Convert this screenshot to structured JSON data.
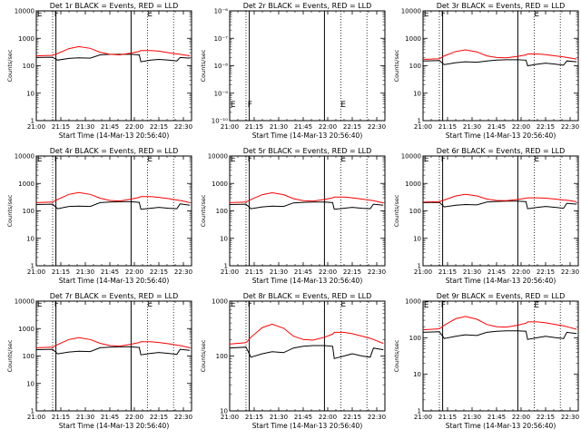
{
  "colors": {
    "events": "#000000",
    "lld": "#ff0000",
    "frame": "#000000",
    "background": "#ffffff"
  },
  "x_tick_labels": [
    "21:00",
    "21:15",
    "21:30",
    "21:45",
    "22:00",
    "22:15",
    "22:30"
  ],
  "chart_data": [
    {
      "type": "line",
      "title": "Det 1r BLACK = Events, RED = LLD",
      "xlabel": "Start Time (14-Mar-13 20:56:40)",
      "ylabel": "Counts/sec",
      "yscale": "log",
      "ylim": [
        1,
        10000
      ],
      "y_tick_labels": [
        "1",
        "10",
        "100",
        "1000",
        "10000"
      ],
      "x_minutes": [
        0,
        10,
        13,
        20,
        26,
        33,
        39,
        45,
        51,
        58,
        63,
        64,
        70,
        75,
        81,
        86,
        88,
        94
      ],
      "series": [
        {
          "key": "events",
          "values": [
            200,
            205,
            160,
            185,
            195,
            190,
            250,
            260,
            260,
            260,
            250,
            140,
            160,
            170,
            160,
            150,
            200,
            190
          ]
        },
        {
          "key": "lld",
          "values": [
            230,
            240,
            280,
            420,
            500,
            430,
            310,
            260,
            250,
            290,
            330,
            360,
            360,
            340,
            300,
            270,
            260,
            230
          ]
        }
      ],
      "markers": [
        {
          "label": "E",
          "minute": 0.5,
          "value": 8000
        },
        {
          "label": "F",
          "minute": 11,
          "value": 8000
        },
        {
          "label": "E",
          "minute": 68,
          "value": 8000
        }
      ],
      "solid_lines": [
        12,
        58
      ],
      "dotted_lines": [
        10,
        68,
        84
      ]
    },
    {
      "type": "line",
      "title": "Det 2r BLACK = Events, RED = LLD",
      "xlabel": "Start Time (14-Mar-13 20:56:40)",
      "ylabel": "Counts/sec",
      "yscale": "log",
      "ylim": [
        1e-10,
        1e-06
      ],
      "y_tick_labels": [
        "10⁻¹⁰",
        "10⁻⁹",
        "10⁻⁸",
        "10⁻⁷",
        "10⁻⁶"
      ],
      "x_minutes": [],
      "series": [],
      "markers": [
        {
          "label": "E",
          "minute": 0.5,
          "value": 4e-10
        },
        {
          "label": "F",
          "minute": 11,
          "value": 4e-10
        },
        {
          "label": "E",
          "minute": 68,
          "value": 4e-10
        }
      ],
      "solid_lines": [
        12,
        58
      ],
      "dotted_lines": [
        10,
        68,
        84
      ]
    },
    {
      "type": "line",
      "title": "Det 3r BLACK = Events, RED = LLD",
      "xlabel": "Start Time (14-Mar-13 20:56:40)",
      "ylabel": "Counts/sec",
      "yscale": "log",
      "ylim": [
        1,
        10000
      ],
      "y_tick_labels": [
        "1",
        "10",
        "100",
        "1000",
        "10000"
      ],
      "x_minutes": [
        0,
        10,
        13,
        20,
        26,
        33,
        39,
        45,
        51,
        58,
        63,
        64,
        70,
        75,
        81,
        86,
        88,
        94
      ],
      "series": [
        {
          "key": "events",
          "values": [
            150,
            155,
            110,
            130,
            140,
            135,
            150,
            160,
            165,
            165,
            160,
            100,
            115,
            125,
            115,
            105,
            150,
            140
          ]
        },
        {
          "key": "lld",
          "values": [
            170,
            180,
            230,
            330,
            380,
            320,
            230,
            200,
            195,
            220,
            250,
            270,
            270,
            255,
            230,
            210,
            200,
            175
          ]
        }
      ],
      "markers": [
        {
          "label": "E",
          "minute": 0.5,
          "value": 8000
        },
        {
          "label": "F",
          "minute": 11,
          "value": 8000
        },
        {
          "label": "E",
          "minute": 68,
          "value": 8000
        }
      ],
      "solid_lines": [
        12,
        58
      ],
      "dotted_lines": [
        10,
        68,
        84
      ]
    },
    {
      "type": "line",
      "title": "Det 4r BLACK = Events, RED = LLD",
      "xlabel": "Start Time (14-Mar-13 20:56:40)",
      "ylabel": "Counts/sec",
      "yscale": "log",
      "ylim": [
        1,
        10000
      ],
      "y_tick_labels": [
        "1",
        "10",
        "100",
        "1000",
        "10000"
      ],
      "x_minutes": [
        0,
        10,
        13,
        20,
        26,
        33,
        39,
        45,
        51,
        58,
        63,
        64,
        70,
        75,
        81,
        86,
        88,
        94
      ],
      "series": [
        {
          "key": "events",
          "values": [
            170,
            175,
            120,
            145,
            150,
            145,
            200,
            210,
            215,
            215,
            205,
            115,
            125,
            135,
            125,
            120,
            180,
            160
          ]
        },
        {
          "key": "lld",
          "values": [
            200,
            210,
            260,
            400,
            470,
            400,
            290,
            240,
            230,
            270,
            310,
            330,
            330,
            310,
            280,
            250,
            240,
            200
          ]
        }
      ],
      "markers": [
        {
          "label": "E",
          "minute": 0.5,
          "value": 8000
        },
        {
          "label": "F",
          "minute": 11,
          "value": 8000
        },
        {
          "label": "E",
          "minute": 68,
          "value": 8000
        }
      ],
      "solid_lines": [
        12,
        58
      ],
      "dotted_lines": [
        10,
        68,
        84
      ]
    },
    {
      "type": "line",
      "title": "Det 5r BLACK = Events, RED = LLD",
      "xlabel": "Start Time (14-Mar-13 20:56:40)",
      "ylabel": "Counts/sec",
      "yscale": "log",
      "ylim": [
        1,
        10000
      ],
      "y_tick_labels": [
        "1",
        "10",
        "100",
        "1000",
        "10000"
      ],
      "x_minutes": [
        0,
        10,
        13,
        20,
        26,
        33,
        39,
        45,
        51,
        58,
        63,
        64,
        70,
        75,
        81,
        86,
        88,
        94
      ],
      "series": [
        {
          "key": "events",
          "values": [
            170,
            175,
            120,
            140,
            150,
            145,
            195,
            205,
            210,
            210,
            200,
            115,
            125,
            135,
            125,
            120,
            175,
            160
          ]
        },
        {
          "key": "lld",
          "values": [
            200,
            210,
            260,
            390,
            460,
            390,
            280,
            235,
            225,
            260,
            300,
            320,
            320,
            300,
            270,
            245,
            235,
            195
          ]
        }
      ],
      "markers": [
        {
          "label": "E",
          "minute": 0.5,
          "value": 8000
        },
        {
          "label": "F",
          "minute": 11,
          "value": 8000
        },
        {
          "label": "E",
          "minute": 68,
          "value": 8000
        }
      ],
      "solid_lines": [
        12,
        58
      ],
      "dotted_lines": [
        10,
        68,
        84
      ]
    },
    {
      "type": "line",
      "title": "Det 6r BLACK = Events, RED = LLD",
      "xlabel": "Start Time (14-Mar-13 20:56:40)",
      "ylabel": "Counts/sec",
      "yscale": "log",
      "ylim": [
        1,
        10000
      ],
      "y_tick_labels": [
        "1",
        "10",
        "100",
        "1000",
        "10000"
      ],
      "x_minutes": [
        0,
        10,
        13,
        20,
        26,
        33,
        39,
        45,
        51,
        58,
        63,
        64,
        70,
        75,
        81,
        86,
        88,
        94
      ],
      "series": [
        {
          "key": "events",
          "values": [
            200,
            205,
            140,
            160,
            170,
            165,
            210,
            220,
            225,
            225,
            215,
            120,
            135,
            145,
            135,
            125,
            190,
            175
          ]
        },
        {
          "key": "lld",
          "values": [
            210,
            215,
            250,
            350,
            400,
            350,
            270,
            240,
            235,
            260,
            290,
            300,
            300,
            290,
            270,
            250,
            245,
            215
          ]
        }
      ],
      "markers": [
        {
          "label": "E",
          "minute": 0.5,
          "value": 8000
        },
        {
          "label": "F",
          "minute": 11,
          "value": 8000
        },
        {
          "label": "E",
          "minute": 68,
          "value": 8000
        }
      ],
      "solid_lines": [
        12,
        58
      ],
      "dotted_lines": [
        10,
        68,
        84
      ]
    },
    {
      "type": "line",
      "title": "Det 7r BLACK = Events, RED = LLD",
      "xlabel": "Start Time (14-Mar-13 20:56:40)",
      "ylabel": "Counts/sec",
      "yscale": "log",
      "ylim": [
        1,
        10000
      ],
      "y_tick_labels": [
        "1",
        "10",
        "100",
        "1000",
        "10000"
      ],
      "x_minutes": [
        0,
        10,
        13,
        20,
        26,
        33,
        39,
        45,
        51,
        58,
        63,
        64,
        70,
        75,
        81,
        86,
        88,
        94
      ],
      "series": [
        {
          "key": "events",
          "values": [
            170,
            175,
            120,
            140,
            150,
            145,
            200,
            210,
            215,
            215,
            205,
            110,
            125,
            135,
            125,
            115,
            175,
            160
          ]
        },
        {
          "key": "lld",
          "values": [
            200,
            210,
            260,
            400,
            470,
            400,
            290,
            240,
            230,
            270,
            310,
            330,
            330,
            310,
            280,
            250,
            240,
            200
          ]
        }
      ],
      "markers": [
        {
          "label": "E",
          "minute": 0.5,
          "value": 8000
        },
        {
          "label": "F",
          "minute": 11,
          "value": 8000
        },
        {
          "label": "E",
          "minute": 68,
          "value": 8000
        }
      ],
      "solid_lines": [
        12,
        58
      ],
      "dotted_lines": [
        10,
        68,
        84
      ]
    },
    {
      "type": "line",
      "title": "Det 8r BLACK = Events, RED = LLD",
      "xlabel": "Start Time (14-Mar-13 20:56:40)",
      "ylabel": "Counts/sec",
      "yscale": "log",
      "ylim": [
        10,
        1000
      ],
      "y_tick_labels": [
        "10",
        "100",
        "1000"
      ],
      "x_minutes": [
        0,
        10,
        13,
        20,
        26,
        33,
        39,
        45,
        51,
        58,
        63,
        64,
        70,
        75,
        81,
        86,
        88,
        94
      ],
      "series": [
        {
          "key": "events",
          "values": [
            140,
            145,
            95,
            110,
            120,
            115,
            140,
            150,
            155,
            155,
            150,
            90,
            100,
            110,
            100,
            95,
            140,
            130
          ]
        },
        {
          "key": "lld",
          "values": [
            165,
            175,
            220,
            330,
            380,
            320,
            230,
            200,
            195,
            220,
            250,
            270,
            270,
            255,
            230,
            210,
            200,
            170
          ]
        }
      ],
      "markers": [
        {
          "label": "E",
          "minute": 0.5,
          "value": 900
        },
        {
          "label": "F",
          "minute": 11,
          "value": 900
        },
        {
          "label": "E",
          "minute": 68,
          "value": 900
        }
      ],
      "solid_lines": [
        12,
        58
      ],
      "dotted_lines": [
        10,
        68,
        84
      ]
    },
    {
      "type": "line",
      "title": "Det 9r BLACK = Events, RED = LLD",
      "xlabel": "Start Time (14-Mar-13 20:56:40)",
      "ylabel": "Counts/sec",
      "yscale": "log",
      "ylim": [
        1,
        1000
      ],
      "y_tick_labels": [
        "1",
        "10",
        "100",
        "1000"
      ],
      "x_minutes": [
        0,
        10,
        13,
        20,
        26,
        33,
        39,
        45,
        51,
        58,
        63,
        64,
        70,
        75,
        81,
        86,
        88,
        94
      ],
      "series": [
        {
          "key": "events",
          "values": [
            140,
            145,
            95,
            110,
            120,
            115,
            140,
            150,
            155,
            155,
            150,
            90,
            100,
            110,
            100,
            95,
            140,
            130
          ]
        },
        {
          "key": "lld",
          "values": [
            165,
            175,
            220,
            330,
            380,
            320,
            230,
            200,
            195,
            220,
            250,
            270,
            270,
            255,
            230,
            210,
            200,
            170
          ]
        }
      ],
      "markers": [
        {
          "label": "E",
          "minute": 0.5,
          "value": 800
        },
        {
          "label": "F",
          "minute": 11,
          "value": 800
        },
        {
          "label": "E",
          "minute": 68,
          "value": 800
        }
      ],
      "solid_lines": [
        12,
        58
      ],
      "dotted_lines": [
        10,
        68,
        84
      ]
    }
  ]
}
